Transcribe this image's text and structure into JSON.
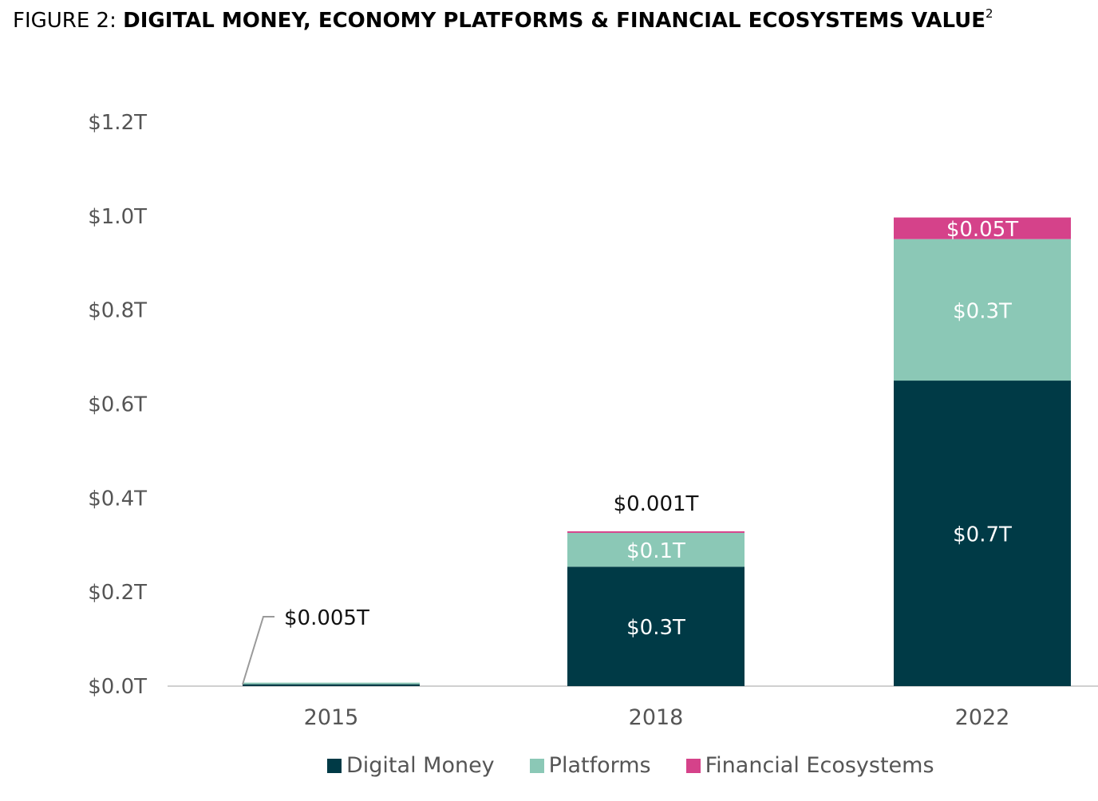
{
  "title": {
    "prefix": "FIGURE 2:",
    "main": "DIGITAL MONEY, ECONOMY PLATFORMS & FINANCIAL ECOSYSTEMS VALUE",
    "superscript": "2"
  },
  "chart_data": {
    "type": "bar",
    "stacked": true,
    "categories": [
      "2015",
      "2018",
      "2022"
    ],
    "ylim": [
      0,
      1.2
    ],
    "yticks": [
      0,
      0.2,
      0.4,
      0.6,
      0.8,
      1.0,
      1.2
    ],
    "ytick_labels": [
      "$0.0T",
      "$0.2T",
      "$0.4T",
      "$0.6T",
      "$0.8T",
      "$1.0T",
      "$1.2T"
    ],
    "grid": false,
    "legend_position": "bottom",
    "series": [
      {
        "name": "Digital Money",
        "color": "#003a46",
        "values": [
          0.004,
          0.254,
          0.65
        ],
        "labels": [
          "",
          "$0.3T",
          "$0.7T"
        ],
        "label_color": "#ffffff"
      },
      {
        "name": "Platforms",
        "color": "#8bc8b6",
        "values": [
          0.001,
          0.072,
          0.301
        ],
        "labels": [
          "",
          "$0.1T",
          "$0.3T"
        ],
        "label_color": "#ffffff"
      },
      {
        "name": "Financial Ecosystems",
        "color": "#d5428a",
        "values": [
          0.0,
          0.003,
          0.046
        ],
        "labels": [
          "",
          "",
          "$0.05T"
        ],
        "label_color": "#ffffff"
      }
    ],
    "annotations": [
      {
        "category": "2015",
        "text": "$0.005T",
        "callout": true
      },
      {
        "category": "2018",
        "text": "$0.001T",
        "callout": false
      }
    ]
  }
}
